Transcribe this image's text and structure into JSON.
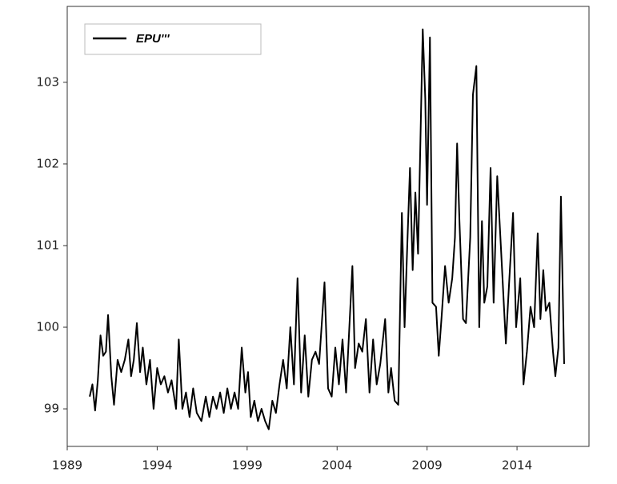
{
  "chart_data": {
    "type": "line",
    "x": [
      1990.25,
      1990.4,
      1990.55,
      1990.7,
      1990.85,
      1991.0,
      1991.15,
      1991.27,
      1991.45,
      1991.6,
      1991.8,
      1992.0,
      1992.2,
      1992.4,
      1992.55,
      1992.7,
      1992.87,
      1993.05,
      1993.2,
      1993.4,
      1993.6,
      1993.8,
      1994.0,
      1994.2,
      1994.4,
      1994.6,
      1994.8,
      1995.05,
      1995.2,
      1995.4,
      1995.6,
      1995.8,
      1996.0,
      1996.2,
      1996.46,
      1996.7,
      1996.9,
      1997.1,
      1997.3,
      1997.5,
      1997.7,
      1997.9,
      1998.1,
      1998.3,
      1998.5,
      1998.7,
      1998.9,
      1999.05,
      1999.2,
      1999.4,
      1999.6,
      1999.8,
      2000.0,
      2000.2,
      2000.4,
      2000.6,
      2000.8,
      2001.0,
      2001.2,
      2001.4,
      2001.6,
      2001.8,
      2002.0,
      2002.2,
      2002.4,
      2002.6,
      2002.8,
      2003.0,
      2003.3,
      2003.5,
      2003.7,
      2003.9,
      2004.1,
      2004.3,
      2004.5,
      2004.85,
      2005.0,
      2005.2,
      2005.4,
      2005.6,
      2005.8,
      2006.0,
      2006.2,
      2006.4,
      2006.67,
      2006.85,
      2007.0,
      2007.2,
      2007.4,
      2007.6,
      2007.75,
      2007.9,
      2008.05,
      2008.2,
      2008.35,
      2008.5,
      2008.76,
      2008.9,
      2009.0,
      2009.16,
      2009.3,
      2009.5,
      2009.65,
      2009.8,
      2010.0,
      2010.2,
      2010.4,
      2010.55,
      2010.67,
      2010.8,
      2011.0,
      2011.16,
      2011.4,
      2011.55,
      2011.74,
      2011.9,
      2012.05,
      2012.18,
      2012.35,
      2012.53,
      2012.7,
      2012.9,
      2013.1,
      2013.38,
      2013.55,
      2013.78,
      2013.95,
      2014.18,
      2014.36,
      2014.55,
      2014.75,
      2014.95,
      2015.15,
      2015.3,
      2015.46,
      2015.6,
      2015.8,
      2016.0,
      2016.13,
      2016.3,
      2016.44,
      2016.62
    ],
    "series": [
      {
        "name": "EPU'''",
        "color": "#000000",
        "values": [
          99.15,
          99.3,
          98.98,
          99.35,
          99.9,
          99.65,
          99.7,
          100.15,
          99.4,
          99.05,
          99.6,
          99.45,
          99.6,
          99.85,
          99.4,
          99.6,
          100.05,
          99.45,
          99.75,
          99.3,
          99.6,
          99.0,
          99.5,
          99.3,
          99.4,
          99.2,
          99.35,
          99.0,
          99.85,
          99.0,
          99.2,
          98.9,
          99.25,
          98.95,
          98.85,
          99.15,
          98.9,
          99.15,
          99.0,
          99.2,
          98.95,
          99.25,
          99.0,
          99.2,
          99.0,
          99.75,
          99.2,
          99.45,
          98.9,
          99.1,
          98.85,
          99.0,
          98.85,
          98.75,
          99.1,
          98.95,
          99.3,
          99.6,
          99.25,
          100.0,
          99.3,
          100.6,
          99.2,
          99.9,
          99.15,
          99.6,
          99.7,
          99.55,
          100.55,
          99.25,
          99.15,
          99.75,
          99.3,
          99.85,
          99.2,
          100.75,
          99.5,
          99.8,
          99.7,
          100.1,
          99.2,
          99.85,
          99.3,
          99.55,
          100.1,
          99.2,
          99.5,
          99.1,
          99.05,
          101.4,
          100.0,
          101.0,
          101.95,
          100.7,
          101.65,
          100.9,
          103.65,
          102.8,
          101.5,
          103.55,
          100.3,
          100.25,
          99.65,
          100.1,
          100.75,
          100.3,
          100.6,
          101.1,
          102.25,
          101.3,
          100.1,
          100.05,
          101.1,
          102.85,
          103.2,
          100.0,
          101.3,
          100.3,
          100.5,
          101.95,
          100.3,
          101.85,
          101.0,
          99.8,
          100.5,
          101.4,
          100.0,
          100.6,
          99.3,
          99.7,
          100.25,
          100.0,
          101.15,
          100.1,
          100.7,
          100.2,
          100.3,
          99.7,
          99.4,
          99.75,
          101.6,
          99.55
        ]
      }
    ],
    "xlim": [
      1989,
      2018
    ],
    "xticks": [
      1989,
      1994,
      1999,
      2004,
      2009,
      2014
    ],
    "ylim": [
      98.54,
      103.93
    ],
    "yticks": [
      99,
      100,
      101,
      102,
      103
    ],
    "legend": "upper left",
    "grid": false
  }
}
